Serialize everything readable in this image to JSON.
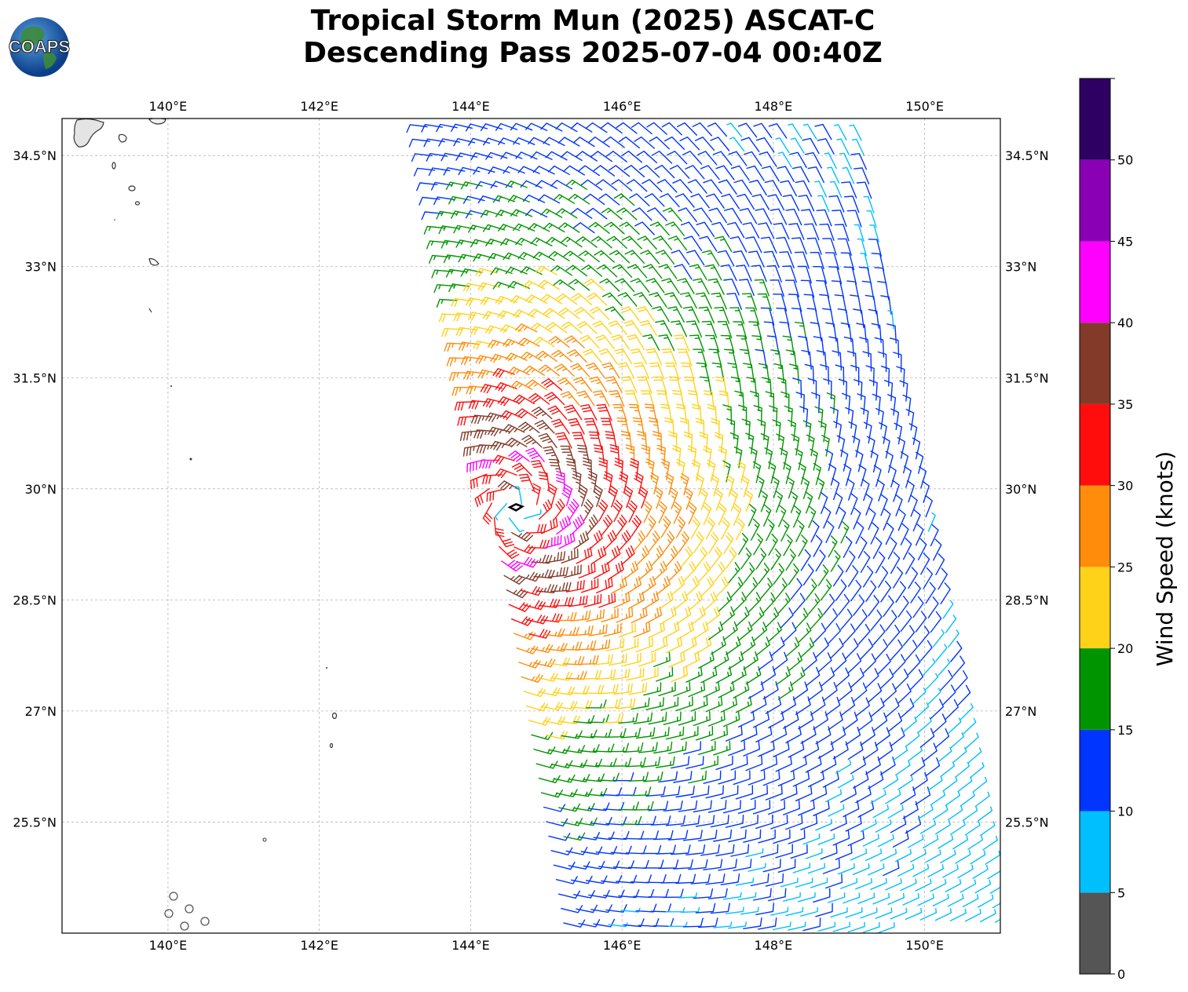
{
  "title": {
    "line1": "Tropical Storm Mun (2025) ASCAT-C",
    "line2": "Descending Pass 2025-07-04 00:40Z"
  },
  "logo": {
    "text": "COAPS",
    "icon": "globe-logo-icon"
  },
  "chart_data": {
    "type": "wind-barb-map",
    "xlabels": [
      "140°E",
      "142°E",
      "144°E",
      "146°E",
      "148°E",
      "150°E"
    ],
    "x_values": [
      140,
      142,
      144,
      146,
      148,
      150
    ],
    "ylabels": [
      "34.5°N",
      "33°N",
      "31.5°N",
      "30°N",
      "28.5°N",
      "27°N",
      "25.5°N"
    ],
    "y_values": [
      34.5,
      33,
      31.5,
      30,
      28.5,
      27,
      25.5
    ],
    "xlim": [
      138.6,
      151.0
    ],
    "ylim": [
      24.0,
      35.0
    ],
    "grid": true,
    "storm_center": {
      "lon": 144.6,
      "lat": 29.75
    },
    "colorbar": {
      "label": "Wind Speed (knots)",
      "ticks": [
        "0",
        "5",
        "10",
        "15",
        "20",
        "25",
        "30",
        "35",
        "40",
        "45",
        "50"
      ],
      "bins": [
        {
          "min": 0,
          "max": 5,
          "color": "#555555"
        },
        {
          "min": 5,
          "max": 10,
          "color": "#00bfff"
        },
        {
          "min": 10,
          "max": 15,
          "color": "#0035ff"
        },
        {
          "min": 15,
          "max": 20,
          "color": "#009500"
        },
        {
          "min": 20,
          "max": 25,
          "color": "#ffd21a"
        },
        {
          "min": 25,
          "max": 30,
          "color": "#ff8c0a"
        },
        {
          "min": 30,
          "max": 35,
          "color": "#ff0d0d"
        },
        {
          "min": 35,
          "max": 40,
          "color": "#833a28"
        },
        {
          "min": 40,
          "max": 45,
          "color": "#ff00ff"
        },
        {
          "min": 45,
          "max": 50,
          "color": "#8a00b4"
        },
        {
          "min": 50,
          "max": 55,
          "color": "#2e0063"
        }
      ]
    }
  }
}
